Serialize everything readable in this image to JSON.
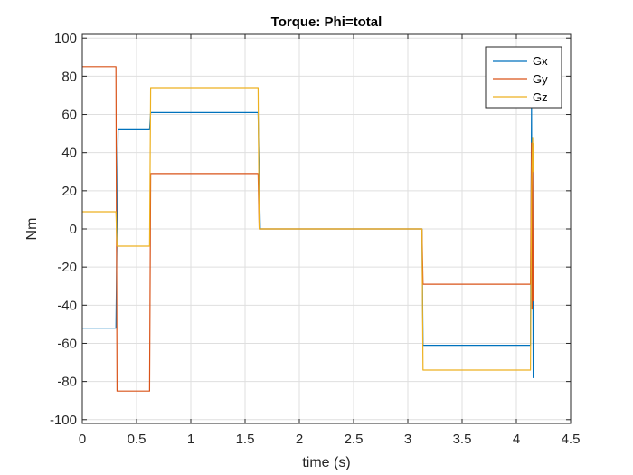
{
  "chart_data": {
    "type": "line",
    "title": "Torque: Phi=total",
    "xlabel": "time (s)",
    "ylabel": "Nm",
    "xlim": [
      0,
      4.5
    ],
    "ylim": [
      -102,
      102
    ],
    "xticks": [
      0,
      0.5,
      1,
      1.5,
      2,
      2.5,
      3,
      3.5,
      4,
      4.5
    ],
    "xtick_labels": [
      "0",
      "0.5",
      "1",
      "1.5",
      "2",
      "2.5",
      "3",
      "3.5",
      "4",
      "4.5"
    ],
    "yticks": [
      -100,
      -80,
      -60,
      -40,
      -20,
      0,
      20,
      40,
      60,
      80,
      100
    ],
    "ytick_labels": [
      "-100",
      "-80",
      "-60",
      "-40",
      "-20",
      "0",
      "20",
      "40",
      "60",
      "80",
      "100"
    ],
    "grid": true,
    "legend_position": "top-right",
    "series": [
      {
        "name": "Gx",
        "color": "#0072BD",
        "x": [
          0,
          0.31,
          0.33,
          0.62,
          0.63,
          1.62,
          1.64,
          3.13,
          3.14,
          4.13,
          4.14,
          4.145,
          4.15,
          4.155,
          4.16
        ],
        "y": [
          -52,
          -52,
          52,
          52,
          61,
          61,
          0,
          0,
          -61,
          -61,
          65,
          -42,
          43,
          -78,
          -60
        ]
      },
      {
        "name": "Gy",
        "color": "#D95319",
        "x": [
          0,
          0.31,
          0.32,
          0.62,
          0.63,
          1.62,
          1.63,
          3.13,
          3.14,
          4.13,
          4.14,
          4.145,
          4.15,
          4.155
        ],
        "y": [
          85,
          85,
          -85,
          -85,
          29,
          29,
          0,
          0,
          -29,
          -29,
          45,
          -42,
          40,
          -38
        ]
      },
      {
        "name": "Gz",
        "color": "#EDB120",
        "x": [
          0,
          0.31,
          0.32,
          0.62,
          0.63,
          1.62,
          1.63,
          3.13,
          3.14,
          4.13,
          4.14,
          4.15,
          4.155,
          4.16
        ],
        "y": [
          9,
          9,
          -9,
          -9,
          74,
          74,
          0,
          0,
          -74,
          -74,
          20,
          48,
          30,
          45
        ]
      }
    ]
  }
}
